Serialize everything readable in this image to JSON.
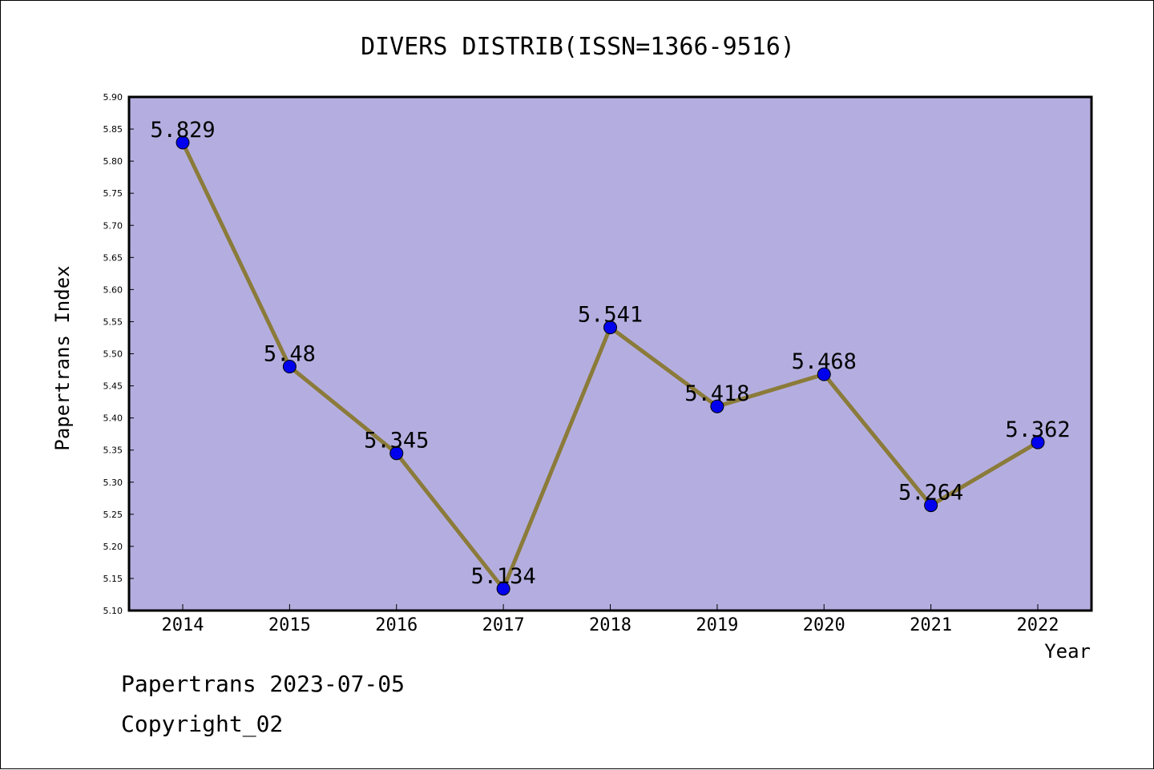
{
  "chart_data": {
    "type": "line",
    "title": "DIVERS DISTRIB(ISSN=1366-9516)",
    "xlabel": "Year",
    "ylabel": "Papertrans Index",
    "categories": [
      "2014",
      "2015",
      "2016",
      "2017",
      "2018",
      "2019",
      "2020",
      "2021",
      "2022"
    ],
    "series": [
      {
        "values": [
          5.829,
          5.48,
          5.345,
          5.134,
          5.541,
          5.418,
          5.468,
          5.264,
          5.362
        ],
        "labels": [
          "5.829",
          "5.48",
          "5.345",
          "5.134",
          "5.541",
          "5.418",
          "5.468",
          "5.264",
          "5.362"
        ]
      }
    ],
    "ylim": [
      5.1,
      5.9
    ],
    "yticks": [
      "5.10",
      "5.15",
      "5.20",
      "5.25",
      "5.30",
      "5.35",
      "5.40",
      "5.45",
      "5.50",
      "5.55",
      "5.60",
      "5.65",
      "5.70",
      "5.75",
      "5.80",
      "5.85",
      "5.90"
    ],
    "grid": false,
    "legend": "none",
    "colors": {
      "plot_background": "#b4aee0",
      "line": "#8b7b3a",
      "marker": "#0000ee"
    }
  },
  "footer": {
    "line1": "Papertrans 2023-07-05",
    "line2": "Copyright_02"
  }
}
